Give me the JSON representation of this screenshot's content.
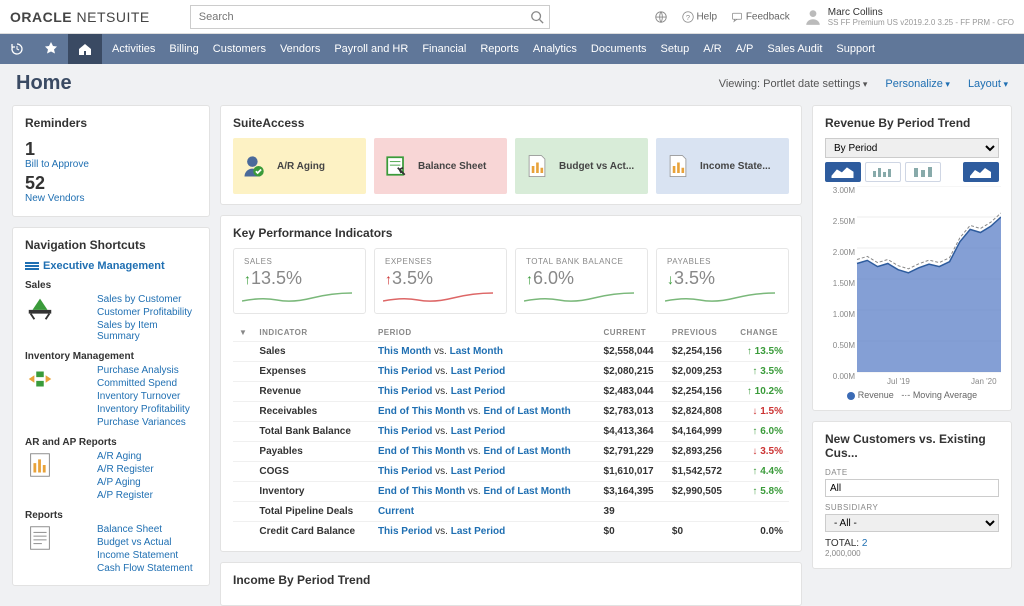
{
  "brand": {
    "left": "ORACLE",
    "right": "NETSUITE"
  },
  "search": {
    "placeholder": "Search"
  },
  "help": "Help",
  "feedback": "Feedback",
  "user": {
    "name": "Marc Collins",
    "role": "SS FF Premium US v2019.2.0 3.25 - FF PRM - CFO"
  },
  "menu": [
    "Activities",
    "Billing",
    "Customers",
    "Vendors",
    "Payroll and HR",
    "Financial",
    "Reports",
    "Analytics",
    "Documents",
    "Setup",
    "A/R",
    "A/P",
    "Sales Audit",
    "Support"
  ],
  "page_title": "Home",
  "viewing": "Viewing: Portlet date settings",
  "personalize": "Personalize",
  "layout": "Layout",
  "reminders": {
    "title": "Reminders",
    "items": [
      {
        "n": "1",
        "t": "Bill to Approve"
      },
      {
        "n": "52",
        "t": "New Vendors"
      }
    ]
  },
  "navsc": {
    "title": "Navigation Shortcuts",
    "exec": "Executive Management",
    "groups": [
      {
        "h": "Sales",
        "links": [
          "Sales by Customer",
          "Customer Profitability",
          "Sales by Item Summary"
        ]
      },
      {
        "h": "Inventory Management",
        "links": [
          "Purchase Analysis",
          "Committed Spend",
          "Inventory Turnover",
          "Inventory Profitability",
          "Purchase Variances"
        ]
      },
      {
        "h": "AR and AP Reports",
        "links": [
          "A/R Aging",
          "A/R Register",
          "A/P Aging",
          "A/P Register"
        ]
      },
      {
        "h": "Reports",
        "links": [
          "Balance Sheet",
          "Budget vs Actual",
          "Income Statement",
          "Cash Flow Statement"
        ]
      }
    ]
  },
  "suite": {
    "title": "SuiteAccess",
    "tiles": [
      {
        "t": "A/R Aging",
        "bg": "#fdf2c4"
      },
      {
        "t": "Balance Sheet",
        "bg": "#f8d6d6"
      },
      {
        "t": "Budget vs Act...",
        "bg": "#d8ecd8"
      },
      {
        "t": "Income State...",
        "bg": "#d9e3f2"
      }
    ]
  },
  "kpi": {
    "title": "Key Performance Indicators",
    "cards": [
      {
        "l": "SALES",
        "v": "13.5%",
        "dir": "up",
        "color": "#3a9b3a",
        "spark": "#7ab87a"
      },
      {
        "l": "EXPENSES",
        "v": "3.5%",
        "dir": "up",
        "color": "#c33",
        "spark": "#d66"
      },
      {
        "l": "TOTAL BANK BALANCE",
        "v": "6.0%",
        "dir": "up",
        "color": "#3a9b3a",
        "spark": "#7ab87a"
      },
      {
        "l": "PAYABLES",
        "v": "3.5%",
        "dir": "down",
        "color": "#3a9b3a",
        "spark": "#7ab87a"
      }
    ],
    "table": {
      "cols": [
        "INDICATOR",
        "PERIOD",
        "CURRENT",
        "PREVIOUS",
        "CHANGE"
      ],
      "rows": [
        {
          "i": "Sales",
          "p": [
            "This Month",
            " vs. ",
            "Last Month"
          ],
          "c": "$2,558,044",
          "pr": "$2,254,156",
          "ch": "13.5%",
          "d": "up"
        },
        {
          "i": "Expenses",
          "p": [
            "This Period",
            " vs. ",
            "Last Period"
          ],
          "c": "$2,080,215",
          "pr": "$2,009,253",
          "ch": "3.5%",
          "d": "up"
        },
        {
          "i": "Revenue",
          "p": [
            "This Period",
            " vs. ",
            "Last Period"
          ],
          "c": "$2,483,044",
          "pr": "$2,254,156",
          "ch": "10.2%",
          "d": "up"
        },
        {
          "i": "Receivables",
          "p": [
            "End of This Month",
            " vs. ",
            "End of Last Month"
          ],
          "c": "$2,783,013",
          "pr": "$2,824,808",
          "ch": "1.5%",
          "d": "down"
        },
        {
          "i": "Total Bank Balance",
          "p": [
            "This Period",
            " vs. ",
            "Last Period"
          ],
          "c": "$4,413,364",
          "pr": "$4,164,999",
          "ch": "6.0%",
          "d": "up"
        },
        {
          "i": "Payables",
          "p": [
            "End of This Month",
            " vs. ",
            "End of Last Month"
          ],
          "c": "$2,791,229",
          "pr": "$2,893,256",
          "ch": "3.5%",
          "d": "down"
        },
        {
          "i": "COGS",
          "p": [
            "This Period",
            " vs. ",
            "Last Period"
          ],
          "c": "$1,610,017",
          "pr": "$1,542,572",
          "ch": "4.4%",
          "d": "up"
        },
        {
          "i": "Inventory",
          "p": [
            "End of This Month",
            " vs. ",
            "End of Last Month"
          ],
          "c": "$3,164,395",
          "pr": "$2,990,505",
          "ch": "5.8%",
          "d": "up"
        },
        {
          "i": "Total Pipeline Deals",
          "p": [
            "Current",
            "",
            ""
          ],
          "c": "39",
          "pr": "",
          "ch": "",
          "d": ""
        },
        {
          "i": "Credit Card Balance",
          "p": [
            "This Period",
            " vs. ",
            "Last Period"
          ],
          "c": "$0",
          "pr": "$0",
          "ch": "0.0%",
          "d": ""
        }
      ]
    }
  },
  "income_title": "Income By Period Trend",
  "rev": {
    "title": "Revenue By Period Trend",
    "sel": "By Period",
    "ylabels": [
      "3.00M",
      "2.50M",
      "2.00M",
      "1.50M",
      "1.00M",
      "0.50M",
      "0.00M"
    ],
    "xlabels": [
      "Jul '19",
      "Jan '20"
    ],
    "series": [
      1.75,
      1.8,
      1.7,
      1.75,
      1.65,
      1.6,
      1.68,
      1.74,
      1.7,
      1.78,
      2.1,
      2.3,
      2.25,
      2.35,
      2.5
    ],
    "ymax": 3.0,
    "area_fill": "#5b7fc7",
    "area_stroke": "#2e5c9e",
    "legend": [
      "Revenue",
      "Moving Average"
    ]
  },
  "nc": {
    "title": "New Customers vs. Existing Cus...",
    "date_l": "DATE",
    "date_v": "All",
    "sub_l": "SUBSIDIARY",
    "sub_v": "- All -",
    "total_l": "TOTAL:",
    "total_v": "2",
    "yl": "2,000,000"
  }
}
